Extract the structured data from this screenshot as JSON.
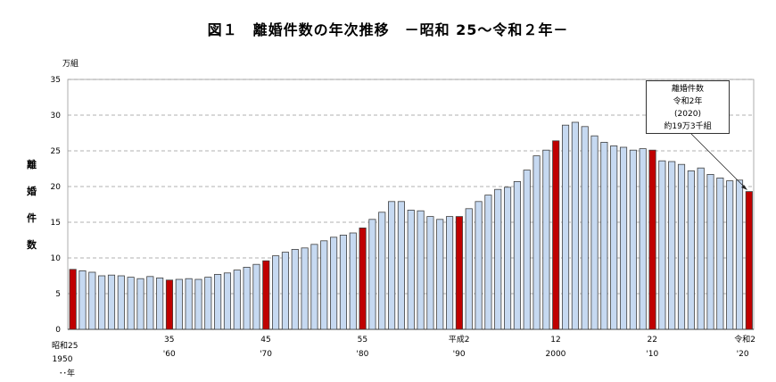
{
  "chart_data": {
    "type": "bar",
    "title": "図１　離婚件数の年次推移　－昭和 25～令和２年－",
    "unit": "万組",
    "ylabel": "離婚件数",
    "ylim": [
      0,
      35
    ],
    "yticks": [
      0,
      5,
      10,
      15,
      20,
      25,
      30,
      35
    ],
    "grid": true,
    "x": [
      1950,
      1951,
      1952,
      1953,
      1954,
      1955,
      1956,
      1957,
      1958,
      1959,
      1960,
      1961,
      1962,
      1963,
      1964,
      1965,
      1966,
      1967,
      1968,
      1969,
      1970,
      1971,
      1972,
      1973,
      1974,
      1975,
      1976,
      1977,
      1978,
      1979,
      1980,
      1981,
      1982,
      1983,
      1984,
      1985,
      1986,
      1987,
      1988,
      1989,
      1990,
      1991,
      1992,
      1993,
      1994,
      1995,
      1996,
      1997,
      1998,
      1999,
      2000,
      2001,
      2002,
      2003,
      2004,
      2005,
      2006,
      2007,
      2008,
      2009,
      2010,
      2011,
      2012,
      2013,
      2014,
      2015,
      2016,
      2017,
      2018,
      2019,
      2020
    ],
    "values": [
      8.4,
      8.2,
      8.0,
      7.5,
      7.6,
      7.5,
      7.3,
      7.1,
      7.4,
      7.2,
      6.9,
      7.0,
      7.1,
      7.0,
      7.3,
      7.7,
      7.9,
      8.3,
      8.7,
      9.1,
      9.6,
      10.3,
      10.8,
      11.2,
      11.4,
      11.9,
      12.4,
      12.9,
      13.2,
      13.5,
      14.2,
      15.4,
      16.4,
      17.9,
      17.9,
      16.7,
      16.6,
      15.8,
      15.4,
      15.8,
      15.8,
      16.9,
      17.9,
      18.8,
      19.6,
      19.9,
      20.7,
      22.3,
      24.3,
      25.1,
      26.4,
      28.6,
      29.0,
      28.4,
      27.1,
      26.2,
      25.7,
      25.5,
      25.1,
      25.3,
      25.1,
      23.6,
      23.5,
      23.1,
      22.2,
      22.6,
      21.7,
      21.2,
      20.8,
      20.9,
      19.3
    ],
    "highlight_years": [
      1950,
      1960,
      1970,
      1980,
      1990,
      2000,
      2010,
      2020
    ],
    "colors": {
      "normal": "#c6d9f1",
      "highlight": "#c00000",
      "edge": "#404040"
    },
    "xtick_labels": [
      {
        "year": 1950,
        "era": "昭和25",
        "western": "1950"
      },
      {
        "year": 1960,
        "era": "35",
        "western": "'60"
      },
      {
        "year": 1970,
        "era": "45",
        "western": "'70"
      },
      {
        "year": 1980,
        "era": "55",
        "western": "'80"
      },
      {
        "year": 1990,
        "era": "平成2",
        "western": "'90"
      },
      {
        "year": 2000,
        "era": "12",
        "western": "2000"
      },
      {
        "year": 2010,
        "era": "22",
        "western": "'10"
      },
      {
        "year": 2020,
        "era": "令和2",
        "western": "'20"
      }
    ],
    "xunit": "･･年",
    "annotation": [
      "離婚件数",
      "令和2年",
      "(2020)",
      "約19万3千組"
    ]
  }
}
